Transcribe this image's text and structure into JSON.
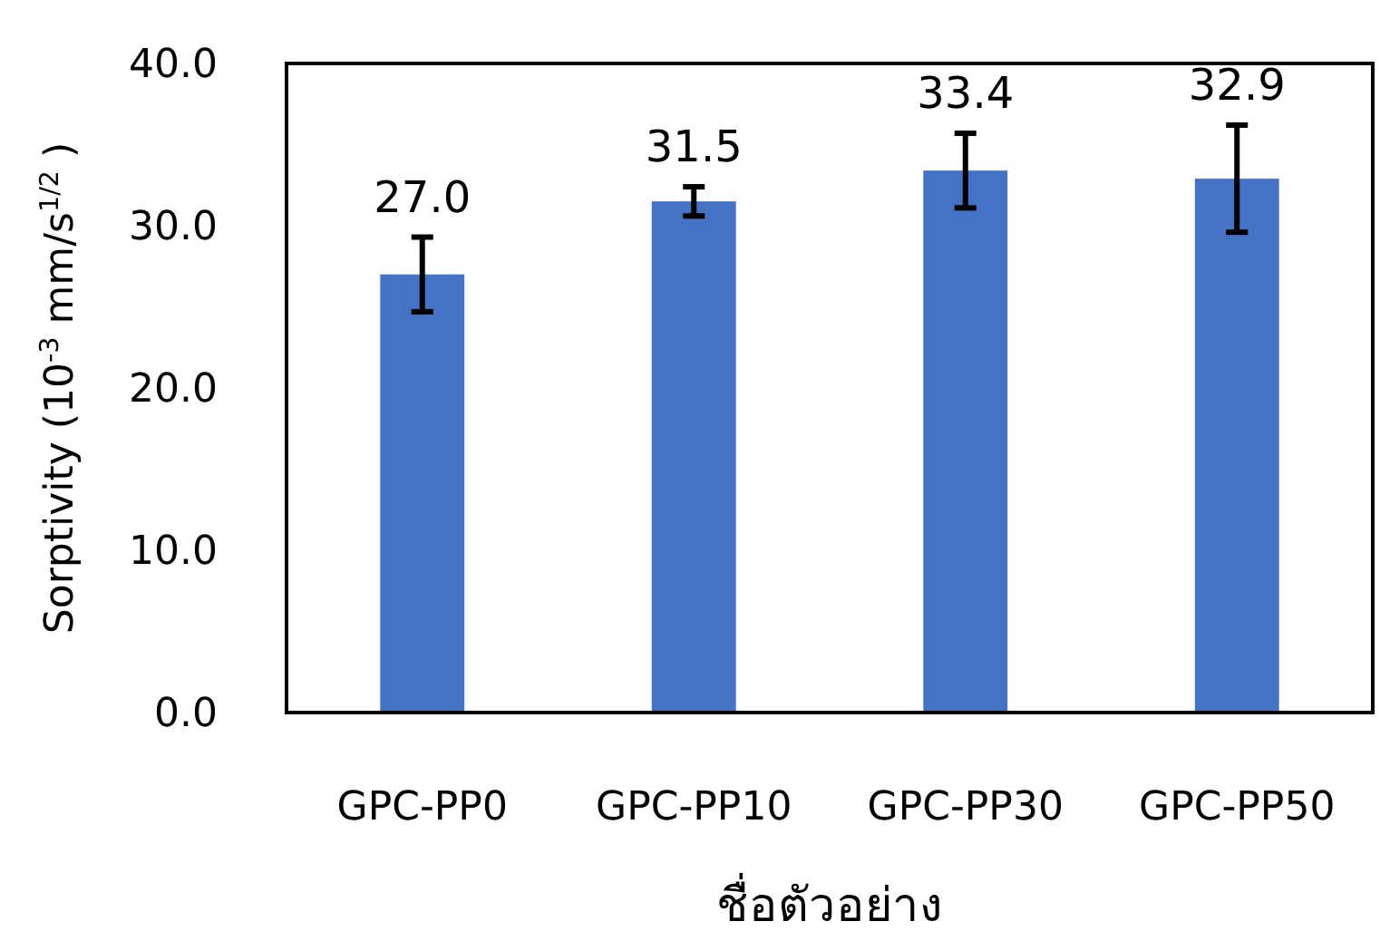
{
  "chart_data": {
    "type": "bar",
    "xlabel": "ชื่อตัวอย่าง",
    "ylabel": "Sorptivity (10$^{-3}$ mm/s$^{1/2}$ )",
    "categories": [
      "GPC-PP0",
      "GPC-PP10",
      "GPC-PP30",
      "GPC-PP50"
    ],
    "values": [
      27.0,
      31.5,
      33.4,
      32.9
    ],
    "value_labels": [
      "27.0",
      "31.5",
      "33.4",
      "32.9"
    ],
    "errors": [
      2.3,
      0.9,
      2.3,
      3.3
    ],
    "color": "#4472c4",
    "ylim": [
      0,
      40
    ],
    "yticks": [
      {
        "value": 0,
        "label": "0.0"
      },
      {
        "value": 10,
        "label": "10.0"
      },
      {
        "value": 20,
        "label": "20.0"
      },
      {
        "value": 30,
        "label": "30.0"
      },
      {
        "value": 40,
        "label": "40.0"
      }
    ],
    "grid": false
  }
}
